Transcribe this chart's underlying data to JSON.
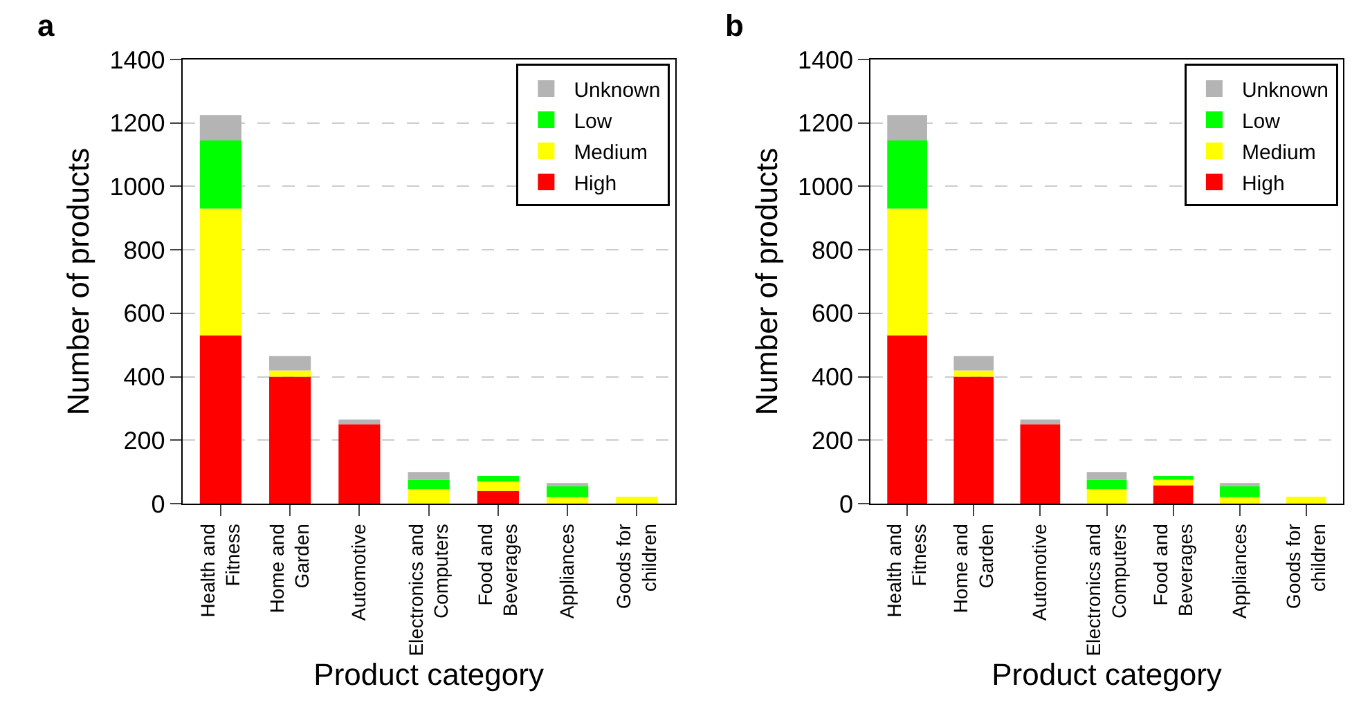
{
  "chart_data": [
    {
      "type": "bar",
      "title": "a",
      "xlabel": "Product category",
      "ylabel": "Number of products",
      "stacked": true,
      "grid": "y",
      "legend": "top right",
      "categories": [
        "Health and Fitness",
        "Home and Garden",
        "Automotive",
        "Electronics and Computers",
        "Food and Beverages",
        "Appliances",
        "Goods for children"
      ],
      "ylim": [
        0,
        1400
      ],
      "yticks": [
        0,
        200,
        400,
        600,
        800,
        1000,
        1200,
        1400
      ],
      "series": [
        {
          "name": "High",
          "color": "#ff0000",
          "values": [
            530,
            400,
            250,
            0,
            40,
            0,
            0
          ]
        },
        {
          "name": "Medium",
          "color": "#ffff00",
          "values": [
            400,
            20,
            0,
            45,
            30,
            20,
            22
          ]
        },
        {
          "name": "Low",
          "color": "#00ff00",
          "values": [
            215,
            0,
            0,
            30,
            17,
            35,
            0
          ]
        },
        {
          "name": "Unknown",
          "color": "#b4b4b4",
          "values": [
            80,
            45,
            15,
            25,
            0,
            10,
            0
          ]
        }
      ]
    },
    {
      "type": "bar",
      "title": "b",
      "xlabel": "Product category",
      "ylabel": "Number of products",
      "stacked": true,
      "grid": "y",
      "legend": "top right",
      "categories": [
        "Health and Fitness",
        "Home and Garden",
        "Automotive",
        "Electronics and Computers",
        "Food and Beverages",
        "Appliances",
        "Goods for children"
      ],
      "ylim": [
        0,
        1400
      ],
      "yticks": [
        0,
        200,
        400,
        600,
        800,
        1000,
        1200,
        1400
      ],
      "series": [
        {
          "name": "High",
          "color": "#ff0000",
          "values": [
            530,
            400,
            250,
            0,
            58,
            0,
            0
          ]
        },
        {
          "name": "Medium",
          "color": "#ffff00",
          "values": [
            400,
            20,
            0,
            45,
            17,
            20,
            22
          ]
        },
        {
          "name": "Low",
          "color": "#00ff00",
          "values": [
            215,
            0,
            0,
            30,
            12,
            35,
            0
          ]
        },
        {
          "name": "Unknown",
          "color": "#b4b4b4",
          "values": [
            80,
            45,
            15,
            25,
            0,
            10,
            0
          ]
        }
      ]
    }
  ]
}
